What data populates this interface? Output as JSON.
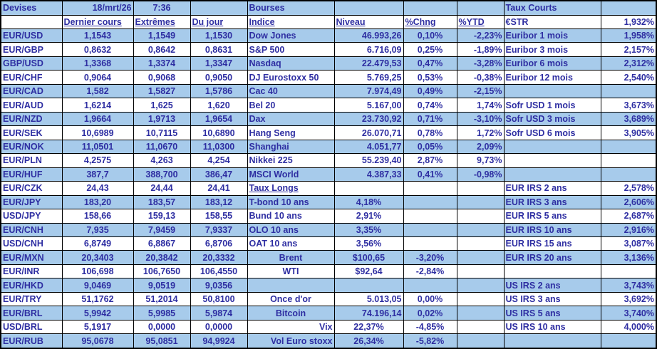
{
  "colors": {
    "row_blue": "#a7cbeb",
    "text_blue": "#2e2ea2",
    "grid": "#000000"
  },
  "devises": {
    "title": "Devises",
    "date": "18/mrt/26",
    "time": "7:36",
    "headers": {
      "last": "Dernier cours",
      "extremes": "Extrêmes",
      "day": "Du jour"
    },
    "pairs": [
      {
        "label": "EUR/USD",
        "last": "1,1543",
        "extremes": "1,1549",
        "day": "1,1530"
      },
      {
        "label": "EUR/GBP",
        "last": "0,8632",
        "extremes": "0,8642",
        "day": "0,8631"
      },
      {
        "label": "GBP/USD",
        "last": "1,3368",
        "extremes": "1,3374",
        "day": "1,3347"
      },
      {
        "label": "EUR/CHF",
        "last": "0,9064",
        "extremes": "0,9068",
        "day": "0,9050"
      },
      {
        "label": "EUR/CAD",
        "last": "1,582",
        "extremes": "1,5827",
        "day": "1,5786"
      },
      {
        "label": "EUR/AUD",
        "last": "1,6214",
        "extremes": "1,625",
        "day": "1,620"
      },
      {
        "label": "EUR/NZD",
        "last": "1,9664",
        "extremes": "1,9713",
        "day": "1,9654"
      },
      {
        "label": "EUR/SEK",
        "last": "10,6989",
        "extremes": "10,7115",
        "day": "10,6890"
      },
      {
        "label": "EUR/NOK",
        "last": "11,0501",
        "extremes": "11,0670",
        "day": "11,0300"
      },
      {
        "label": "EUR/PLN",
        "last": "4,2575",
        "extremes": "4,263",
        "day": "4,254"
      },
      {
        "label": "EUR/HUF",
        "last": "387,7",
        "extremes": "388,700",
        "day": "386,47"
      },
      {
        "label": "EUR/CZK",
        "last": "24,43",
        "extremes": "24,44",
        "day": "24,41"
      },
      {
        "label": "EUR/JPY",
        "last": "183,20",
        "extremes": "183,57",
        "day": "183,12"
      },
      {
        "label": "USD/JPY",
        "last": "158,66",
        "extremes": "159,13",
        "day": "158,55"
      },
      {
        "label": "EUR/CNH",
        "last": "7,935",
        "extremes": "7,9459",
        "day": "7,9337"
      },
      {
        "label": "USD/CNH",
        "last": "6,8749",
        "extremes": "6,8867",
        "day": "6,8706"
      },
      {
        "label": "EUR/MXN",
        "last": "20,3403",
        "extremes": "20,3842",
        "day": "20,3332"
      },
      {
        "label": "EUR/INR",
        "last": "106,698",
        "extremes": "106,7650",
        "day": "106,4550"
      },
      {
        "label": "EUR/HKD",
        "last": "9,0469",
        "extremes": "9,0519",
        "day": "9,0356"
      },
      {
        "label": "EUR/TRY",
        "last": "51,1762",
        "extremes": "51,2014",
        "day": "50,8100"
      },
      {
        "label": "EUR/BRL",
        "last": "5,9942",
        "extremes": "5,9985",
        "day": "5,9874"
      },
      {
        "label": "USD/BRL",
        "last": "5,1917",
        "extremes": "0,0000",
        "day": "0,0000"
      },
      {
        "label": "EUR/RUB",
        "last": "95,0678",
        "extremes": "95,0851",
        "day": "94,9924"
      }
    ]
  },
  "bourses": {
    "title": "Bourses",
    "headers": {
      "indice": "Indice",
      "niveau": "Niveau",
      "chng": "%Chng",
      "ytd": "%YTD"
    },
    "indices": [
      {
        "label": "Dow Jones",
        "niveau": "46.993,26",
        "chng": "0,10%",
        "ytd": "-2,23%"
      },
      {
        "label": "S&P 500",
        "niveau": "6.716,09",
        "chng": "0,25%",
        "ytd": "-1,89%"
      },
      {
        "label": "Nasdaq",
        "niveau": "22.479,53",
        "chng": "0,47%",
        "ytd": "-3,28%"
      },
      {
        "label": "DJ Eurostoxx 50",
        "niveau": "5.769,25",
        "chng": "0,53%",
        "ytd": "-0,38%"
      },
      {
        "label": "Cac 40",
        "niveau": "7.974,49",
        "chng": "0,49%",
        "ytd": "-2,15%"
      },
      {
        "label": "Bel 20",
        "niveau": "5.167,00",
        "chng": "0,74%",
        "ytd": "1,74%"
      },
      {
        "label": "Dax",
        "niveau": "23.730,92",
        "chng": "0,71%",
        "ytd": "-3,10%"
      },
      {
        "label": "Hang Seng",
        "niveau": "26.070,71",
        "chng": "0,78%",
        "ytd": "1,72%"
      },
      {
        "label": "Shanghai",
        "niveau": "4.051,77",
        "chng": "0,05%",
        "ytd": "2,09%"
      },
      {
        "label": "Nikkei 225",
        "niveau": "55.239,40",
        "chng": "2,87%",
        "ytd": "9,73%"
      },
      {
        "label": "MSCI World",
        "niveau": "4.387,33",
        "chng": "0,41%",
        "ytd": "-0,98%"
      }
    ],
    "taux_longs": {
      "title": "Taux Longs",
      "items": [
        {
          "label": "T-bond 10 ans",
          "value": "4,18%"
        },
        {
          "label": "Bund 10 ans",
          "value": "2,91%"
        },
        {
          "label": "OLO 10 ans",
          "value": "3,35%"
        },
        {
          "label": "OAT 10 ans",
          "value": "3,56%"
        }
      ]
    },
    "energy": [
      {
        "label": "Brent",
        "niveau": "$100,65",
        "chng": "-3,20%"
      },
      {
        "label": "WTI",
        "niveau": "$92,64",
        "chng": "-2,84%"
      }
    ],
    "others": [
      {
        "label": "Once d'or",
        "niveau": "5.013,05",
        "chng": "0,00%"
      },
      {
        "label": "Bitcoin",
        "niveau": "74.196,14",
        "chng": "0,02%"
      },
      {
        "label": "Vix",
        "niveau": "22,37%",
        "chng": "-4,85%"
      },
      {
        "label": "Vol Euro stoxx",
        "niveau": "26,34%",
        "chng": "-5,82%"
      }
    ]
  },
  "taux_courts": {
    "title": "Taux Courts",
    "estr": {
      "label": "€STR",
      "value": "1,932%"
    },
    "euribor": [
      {
        "label": "Euribor 1 mois",
        "value": "1,958%"
      },
      {
        "label": "Euribor 3 mois",
        "value": "2,157%"
      },
      {
        "label": "Euribor 6 mois",
        "value": "2,312%"
      },
      {
        "label": "Euribor 12 mois",
        "value": "2,540%"
      }
    ],
    "sofr": [
      {
        "label": "Sofr USD 1 mois",
        "value": "3,673%"
      },
      {
        "label": "Sofr USD 3 mois",
        "value": "3,689%"
      },
      {
        "label": "Sofr USD 6 mois",
        "value": "3,905%"
      }
    ],
    "eur_irs": [
      {
        "label": "EUR IRS 2 ans",
        "value": "2,578%"
      },
      {
        "label": "EUR IRS 3 ans",
        "value": "2,606%"
      },
      {
        "label": "EUR IRS 5 ans",
        "value": "2,687%"
      },
      {
        "label": "EUR IRS 10 ans",
        "value": "2,916%"
      },
      {
        "label": "EUR IRS 15 ans",
        "value": "3,087%"
      },
      {
        "label": "EUR IRS 20 ans",
        "value": "3,136%"
      }
    ],
    "us_irs": [
      {
        "label": "US IRS 2 ans",
        "value": "3,743%"
      },
      {
        "label": "US IRS 3 ans",
        "value": "3,692%"
      },
      {
        "label": "US IRS 5 ans",
        "value": "3,740%"
      },
      {
        "label": "US IRS 10 ans",
        "value": "4,000%"
      }
    ]
  }
}
